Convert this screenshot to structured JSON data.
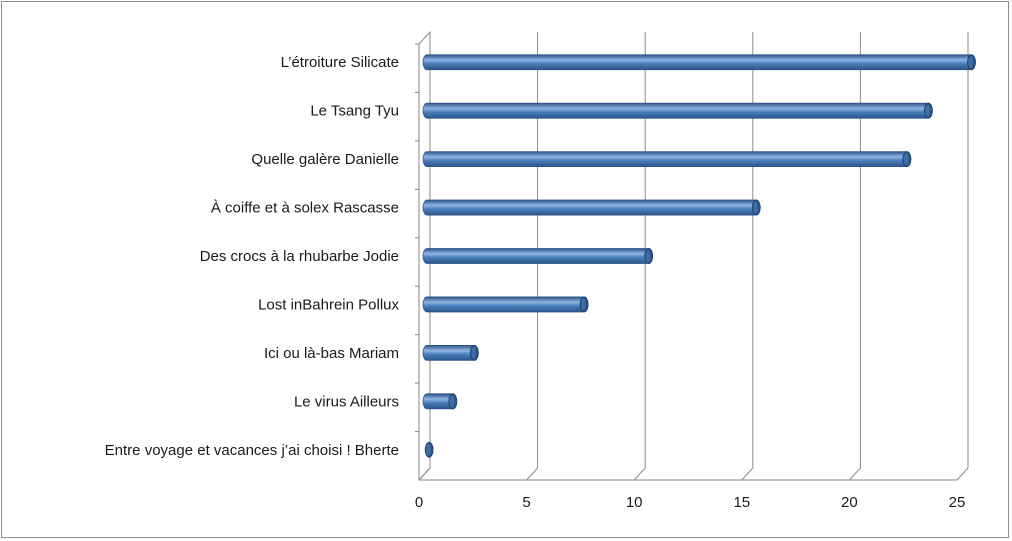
{
  "chart_data": {
    "type": "bar",
    "orientation": "horizontal",
    "categories": [
      "L’étroiture Silicate",
      "Le Tsang Tyu",
      "Quelle galère Danielle",
      "À coiffe et à solex Rascasse",
      "Des crocs à la rhubarbe Jodie",
      "Lost inBahrein Pollux",
      "Ici ou là-bas Mariam",
      "Le virus  Ailleurs",
      "Entre voyage et vacances j’ai choisi   ! Bherte"
    ],
    "values": [
      25.3,
      23.3,
      22.3,
      15.3,
      10.3,
      7.3,
      2.2,
      1.2,
      0.1
    ],
    "xlim": [
      0,
      25
    ],
    "xticks": [
      "0",
      "5",
      "10",
      "15",
      "20",
      "25"
    ],
    "grid": true,
    "legend": "none",
    "bar_color": "#4a7ebb",
    "bar_light": "#8fb4e3",
    "bar_dark": "#2c5588"
  }
}
